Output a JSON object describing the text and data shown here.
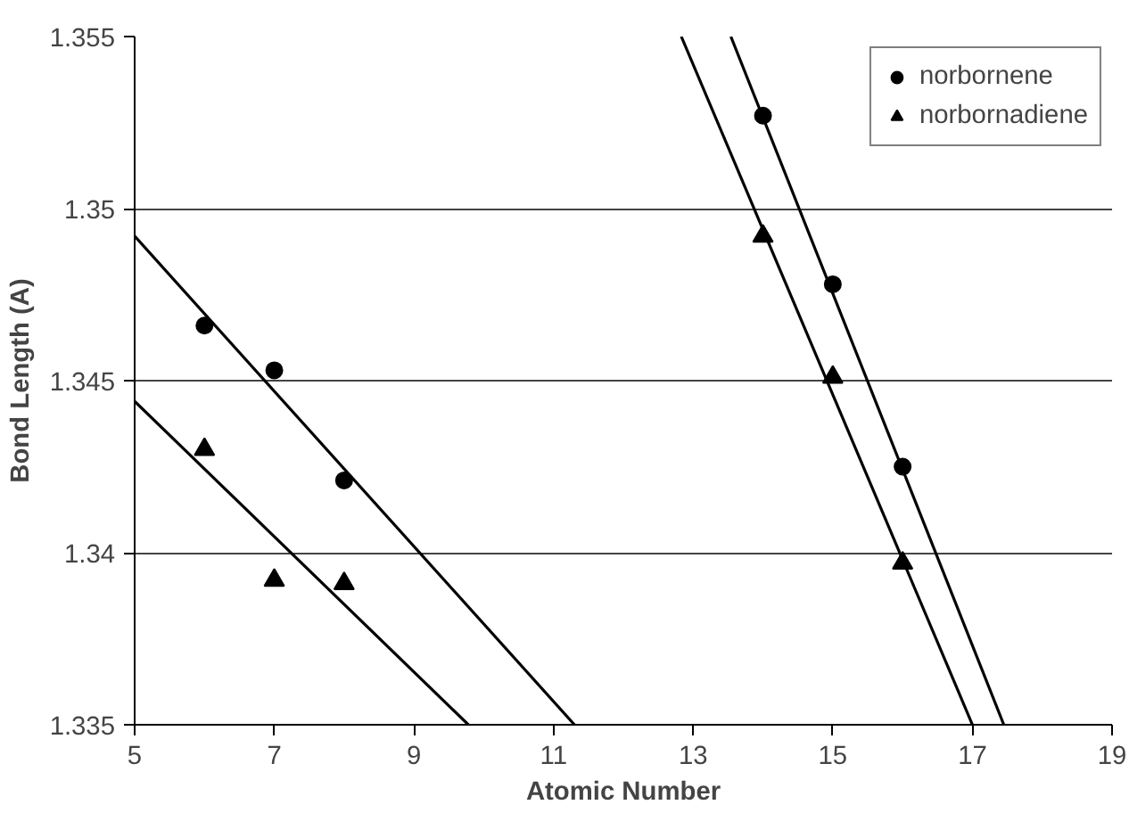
{
  "chart_data": {
    "type": "scatter",
    "xlabel": "Atomic Number",
    "ylabel": "Bond Length (A)",
    "xlim": [
      5,
      19
    ],
    "xticks": [
      5,
      7,
      9,
      11,
      13,
      15,
      17,
      19
    ],
    "ylim": [
      1.335,
      1.355
    ],
    "yticks": [
      1.335,
      1.34,
      1.345,
      1.35,
      1.355
    ],
    "grid": "y",
    "legend": "top right",
    "series": [
      {
        "name": "norbornene",
        "color": "#000000",
        "marker": "circle",
        "x": [
          6,
          7,
          8,
          14,
          15,
          16
        ],
        "values": [
          1.3466,
          1.3453,
          1.3421,
          1.3527,
          1.3478,
          1.3425
        ]
      },
      {
        "name": "norbornadiene",
        "color": "#000000",
        "marker": "triangle",
        "x": [
          6,
          7,
          8,
          14,
          15,
          16
        ],
        "values": [
          1.343,
          1.3392,
          1.3391,
          1.3492,
          1.3451,
          1.3397
        ]
      },
      {
        "type": "line",
        "color": "#000000",
        "x": [
          5,
          11.3
        ],
        "values": [
          1.3492,
          1.335
        ]
      },
      {
        "type": "line",
        "color": "#000000",
        "x": [
          5,
          9.78
        ],
        "values": [
          1.3444,
          1.335
        ]
      },
      {
        "type": "line",
        "color": "#000000",
        "x": [
          13.54,
          17.45
        ],
        "values": [
          1.355,
          1.335
        ]
      },
      {
        "type": "line",
        "color": "#000000",
        "x": [
          12.83,
          17.0
        ],
        "values": [
          1.355,
          1.335
        ]
      }
    ]
  }
}
